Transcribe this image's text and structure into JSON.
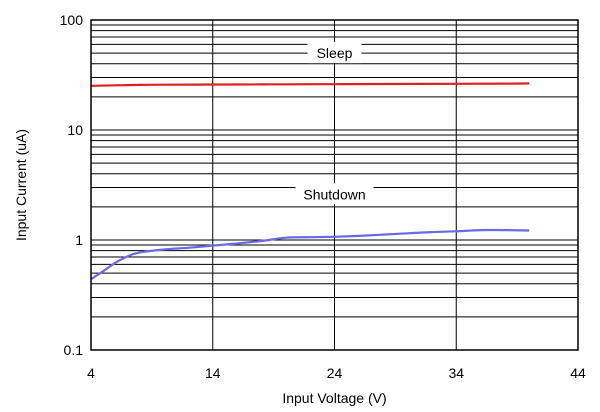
{
  "chart_data": {
    "type": "line",
    "title": "",
    "xlabel": "Input Voltage (V)",
    "ylabel": "Input Current (uA)",
    "x_scale": "linear",
    "y_scale": "log",
    "xlim": [
      4,
      44
    ],
    "ylim": [
      0.1,
      100
    ],
    "x_ticks": [
      4,
      14,
      24,
      34,
      44
    ],
    "x_tick_labels": [
      "4",
      "14",
      "24",
      "34",
      "44"
    ],
    "y_ticks": [
      0.1,
      1,
      10,
      100
    ],
    "y_tick_labels": [
      "0.1",
      "1",
      "10",
      "100"
    ],
    "grid": true,
    "series": [
      {
        "name": "Sleep",
        "color": "#e02020",
        "x": [
          4,
          6,
          8,
          10,
          14,
          18,
          20,
          24,
          28,
          34,
          38,
          40
        ],
        "y": [
          25.2,
          25.5,
          25.7,
          25.8,
          25.9,
          26.0,
          26.05,
          26.1,
          26.2,
          26.3,
          26.4,
          26.5
        ]
      },
      {
        "name": "Shutdown",
        "color": "#6a6ae6",
        "x": [
          4,
          5,
          6,
          7,
          8,
          10,
          12,
          14,
          16,
          18,
          20,
          22,
          24,
          26,
          28,
          30,
          32,
          34,
          36,
          38,
          40
        ],
        "y": [
          0.44,
          0.52,
          0.62,
          0.71,
          0.77,
          0.82,
          0.85,
          0.89,
          0.93,
          0.98,
          1.05,
          1.06,
          1.07,
          1.09,
          1.12,
          1.15,
          1.18,
          1.2,
          1.23,
          1.23,
          1.22
        ]
      }
    ],
    "annotations": [
      {
        "text": "Sleep",
        "x": 24,
        "y": 50
      },
      {
        "text": "Shutdown",
        "x": 24,
        "y": 2.6
      }
    ]
  }
}
